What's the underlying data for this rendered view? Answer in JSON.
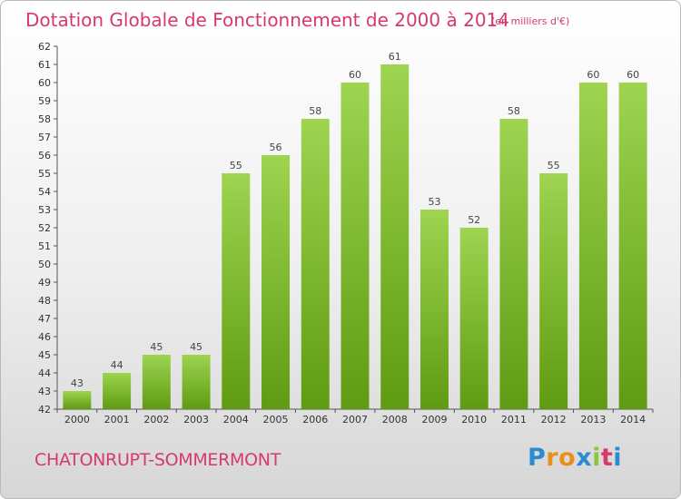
{
  "header": {
    "title": "Dotation Globale de Fonctionnement de 2000 à 2014",
    "unit": "(en milliers d'€)"
  },
  "footer": {
    "commune": "CHATONRUPT-SOMMERMONT",
    "logo_letters": [
      "P",
      "r",
      "o",
      "x",
      "i",
      "t",
      "i"
    ],
    "logo_colors": [
      "#2a8ccf",
      "#e8901c",
      "#e8901c",
      "#2a8ccf",
      "#8cc63f",
      "#d63a6a",
      "#2a8ccf"
    ]
  },
  "colors": {
    "bar_light": "#9ed450",
    "bar_dark": "#5f9b12",
    "axis": "#555555",
    "grid": "#cccccc"
  },
  "chart_data": {
    "type": "bar",
    "title": "Dotation Globale de Fonctionnement de 2000 à 2014",
    "subtitle": "(en milliers d'€)",
    "xlabel": "",
    "ylabel": "",
    "categories": [
      "2000",
      "2001",
      "2002",
      "2003",
      "2004",
      "2005",
      "2006",
      "2007",
      "2008",
      "2009",
      "2010",
      "2011",
      "2012",
      "2013",
      "2014"
    ],
    "values": [
      43,
      44,
      45,
      45,
      55,
      56,
      58,
      60,
      61,
      53,
      52,
      58,
      55,
      60,
      60
    ],
    "ylim": [
      42,
      62
    ],
    "yticks": [
      42,
      43,
      44,
      45,
      46,
      47,
      48,
      49,
      50,
      51,
      52,
      53,
      54,
      55,
      56,
      57,
      58,
      59,
      60,
      61,
      62
    ],
    "grid": false,
    "data_labels": true
  }
}
